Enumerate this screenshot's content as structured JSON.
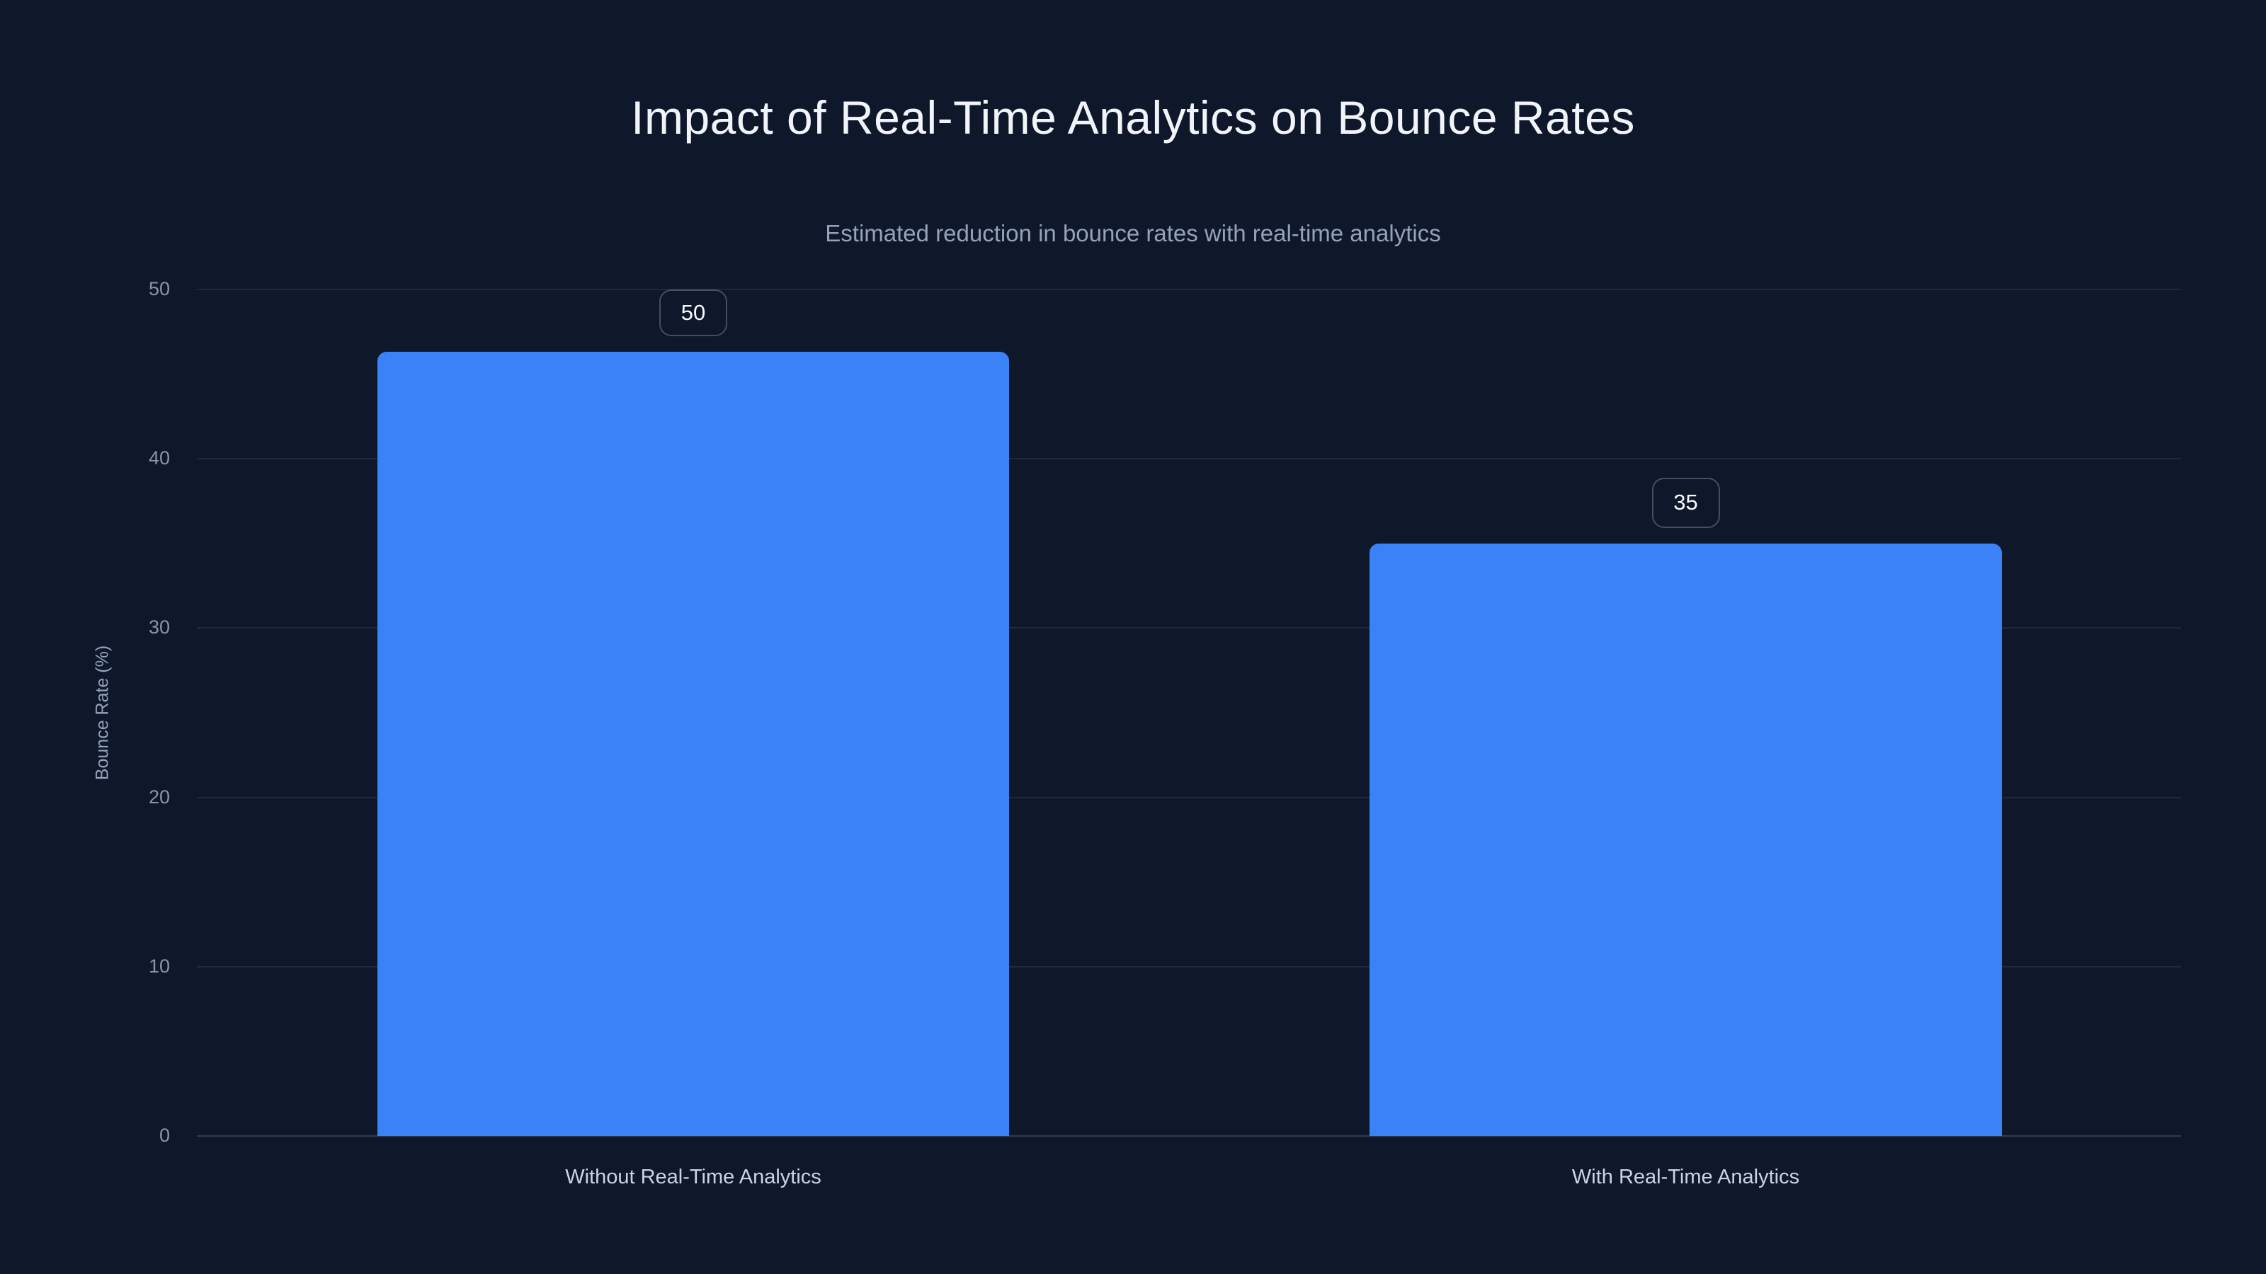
{
  "chart": {
    "title": "Impact of Real-Time Analytics on Bounce Rates",
    "subtitle": "Estimated reduction in bounce rates with real-time analytics",
    "y_axis_title": "Bounce Rate (%)",
    "y_tick_labels_top_to_bottom": [
      "50",
      "40",
      "30",
      "20",
      "10",
      "0"
    ],
    "bars": [
      {
        "category": "Without Real-Time Analytics",
        "value": 50,
        "value_label": "50"
      },
      {
        "category": "With Real-Time Analytics",
        "value": 35,
        "value_label": "35"
      }
    ]
  },
  "chart_data": {
    "type": "bar",
    "categories": [
      "Without Real-Time Analytics",
      "With Real-Time Analytics"
    ],
    "values": [
      50,
      35
    ],
    "data_labels": [
      "50",
      "35"
    ],
    "title": "Impact of Real-Time Analytics on Bounce Rates",
    "subtitle": "Estimated reduction in bounce rates with real-time analytics",
    "xlabel": "",
    "ylabel": "Bounce Rate (%)",
    "ylim": [
      0,
      50
    ],
    "yticks": [
      0,
      10,
      20,
      30,
      40,
      50
    ],
    "grid": "horizontal",
    "legend": false,
    "bar_color": "#3b82f6",
    "background_color": "#0f172a"
  },
  "colors": {
    "background": "#0f172a",
    "bar": "#3b82f6",
    "title_text": "#f1f5f9",
    "subtitle_text": "#94a3b8",
    "tick_text": "#8b95a7",
    "category_text": "#cbd5e1",
    "gridline": "rgba(148,163,184,0.13)",
    "gridline_zero": "rgba(148,163,184,0.26)",
    "badge_border": "rgba(148,163,184,0.4)",
    "badge_text": "#f8fafc"
  }
}
